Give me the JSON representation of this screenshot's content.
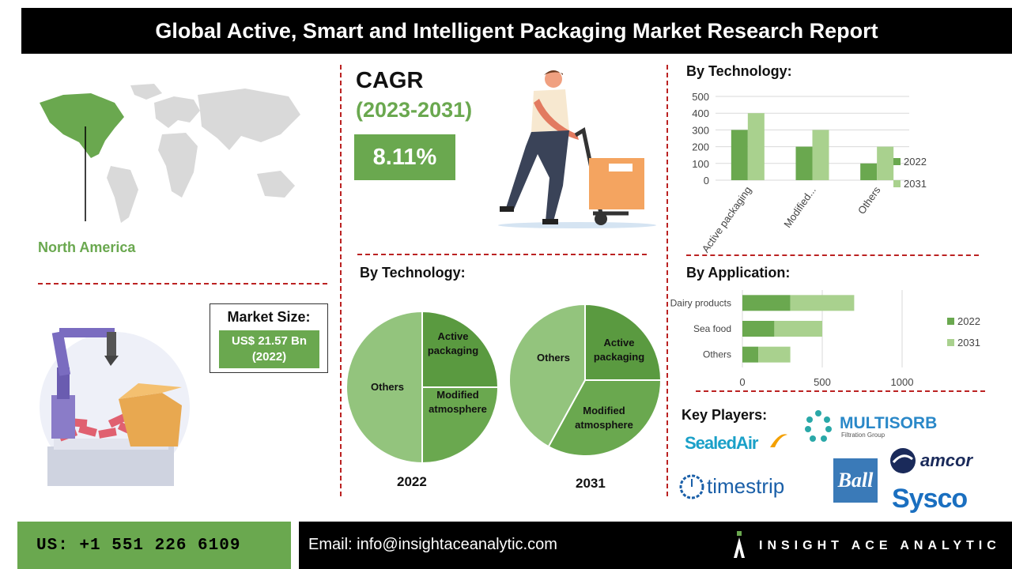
{
  "header": {
    "title": "Global Active, Smart and Intelligent Packaging Market Research Report"
  },
  "region": {
    "label": "North America"
  },
  "cagr": {
    "title": "CAGR",
    "years": "(2023-2031)",
    "value": "8.11%"
  },
  "market_size": {
    "label": "Market Size:",
    "value_line1": "US$ 21.57 Bn",
    "value_line2": "(2022)"
  },
  "bar_tech": {
    "heading": "By Technology:",
    "chart_data": {
      "type": "bar",
      "categories": [
        "Active packaging",
        "Modified...",
        "Others"
      ],
      "series": [
        {
          "name": "2022",
          "values": [
            300,
            200,
            100
          ],
          "color": "#6aa84f"
        },
        {
          "name": "2031",
          "values": [
            400,
            300,
            200
          ],
          "color": "#a9d18e"
        }
      ],
      "yticks": [
        "500",
        "400",
        "300",
        "200",
        "100",
        "0"
      ],
      "ylim": [
        0,
        500
      ],
      "legend": "right"
    }
  },
  "pies": {
    "heading": "By Technology:",
    "chart_data": [
      {
        "type": "pie",
        "label": "2022",
        "slices": [
          {
            "line1": "Active",
            "line2": "packaging",
            "value": 25,
            "color": "#5a9a40"
          },
          {
            "line1": "Modified",
            "line2": "atmosphere",
            "value": 25,
            "color": "#6aa84f"
          },
          {
            "line1": "Others",
            "line2": "",
            "value": 50,
            "color": "#93c47d"
          }
        ]
      },
      {
        "type": "pie",
        "label": "2031",
        "slices": [
          {
            "line1": "Active",
            "line2": "packaging",
            "value": 25,
            "color": "#5a9a40"
          },
          {
            "line1": "Modified",
            "line2": "atmosphere",
            "value": 33,
            "color": "#6aa84f"
          },
          {
            "line1": "Others",
            "line2": "",
            "value": 42,
            "color": "#93c47d"
          }
        ]
      }
    ]
  },
  "bar_app": {
    "heading": "By Application:",
    "chart_data": {
      "type": "bar",
      "orientation": "horizontal-stacked",
      "categories": [
        "Dairy products",
        "Sea food",
        "Others"
      ],
      "series": [
        {
          "name": "2022",
          "values": [
            300,
            200,
            100
          ],
          "color": "#6aa84f"
        },
        {
          "name": "2031",
          "values": [
            400,
            300,
            200
          ],
          "color": "#a9d18e"
        }
      ],
      "xticks": [
        "0",
        "500",
        "1000"
      ],
      "xlim": [
        0,
        1000
      ],
      "legend": "right"
    }
  },
  "key_players": {
    "heading": "Key Players:",
    "logos": [
      "SealedAir",
      "MULTISORB",
      "Filtration Group",
      "timestrip",
      "Ball",
      "amcor",
      "Sysco"
    ]
  },
  "footer": {
    "phone": "US: +1 551 226 6109",
    "email": "Email: info@insightaceanalytic.com",
    "brand": "INSIGHT ACE ANALYTIC"
  },
  "colors": {
    "accent_green": "#6aa84f",
    "light_green": "#a9d18e",
    "divider_red": "#b22222"
  }
}
